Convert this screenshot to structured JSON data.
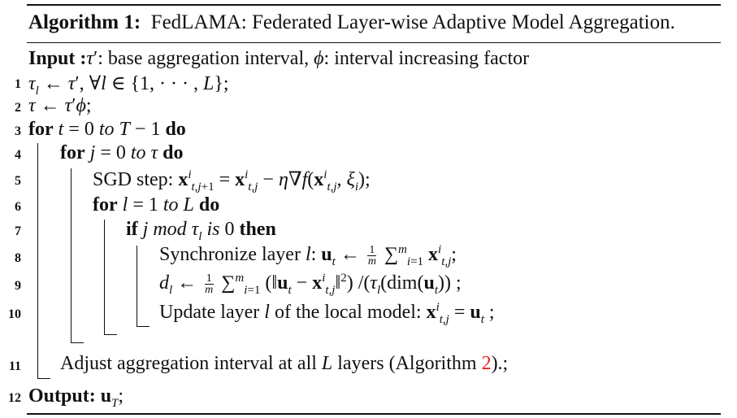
{
  "algorithm": {
    "label": "Algorithm 1:",
    "title": "FedLAMA: Federated Layer-wise Adaptive Model Aggregation.",
    "input_label": "Input :",
    "input_text": "τ′: base aggregation interval, ϕ: interval increasing factor",
    "lines": [
      {
        "num": "1",
        "text": "τl ← τ′, ∀l ∈ {1, · · · , L};"
      },
      {
        "num": "2",
        "text": "τ ← τ′ϕ;"
      },
      {
        "num": "3",
        "text": "for t = 0 to T − 1 do"
      },
      {
        "num": "4",
        "text": "for j = 0 to τ do"
      },
      {
        "num": "5",
        "text": "SGD step: x^i_{t,j+1} = x^i_{t,j} − η∇f(x^i_{t,j}, ξi);"
      },
      {
        "num": "6",
        "text": "for l = 1 to L do"
      },
      {
        "num": "7",
        "text": "if j mod τl is 0 then"
      },
      {
        "num": "8",
        "text": "Synchronize layer l: ut ← 1/m Σ_{i=1}^m x^i_{t,j};"
      },
      {
        "num": "9",
        "text": "dl ← 1/m Σ_{i=1}^m (‖ut − x^i_{t,j}‖²) /(τl(dim(ut)) ;"
      },
      {
        "num": "10",
        "text": "Update layer l of the local model: x^i_{t,j} = ut ;"
      },
      {
        "num": "11",
        "text": "Adjust aggregation interval at all L layers (Algorithm 2).;"
      },
      {
        "num": "12",
        "text": "Output: uT;"
      }
    ],
    "reference": "2"
  }
}
